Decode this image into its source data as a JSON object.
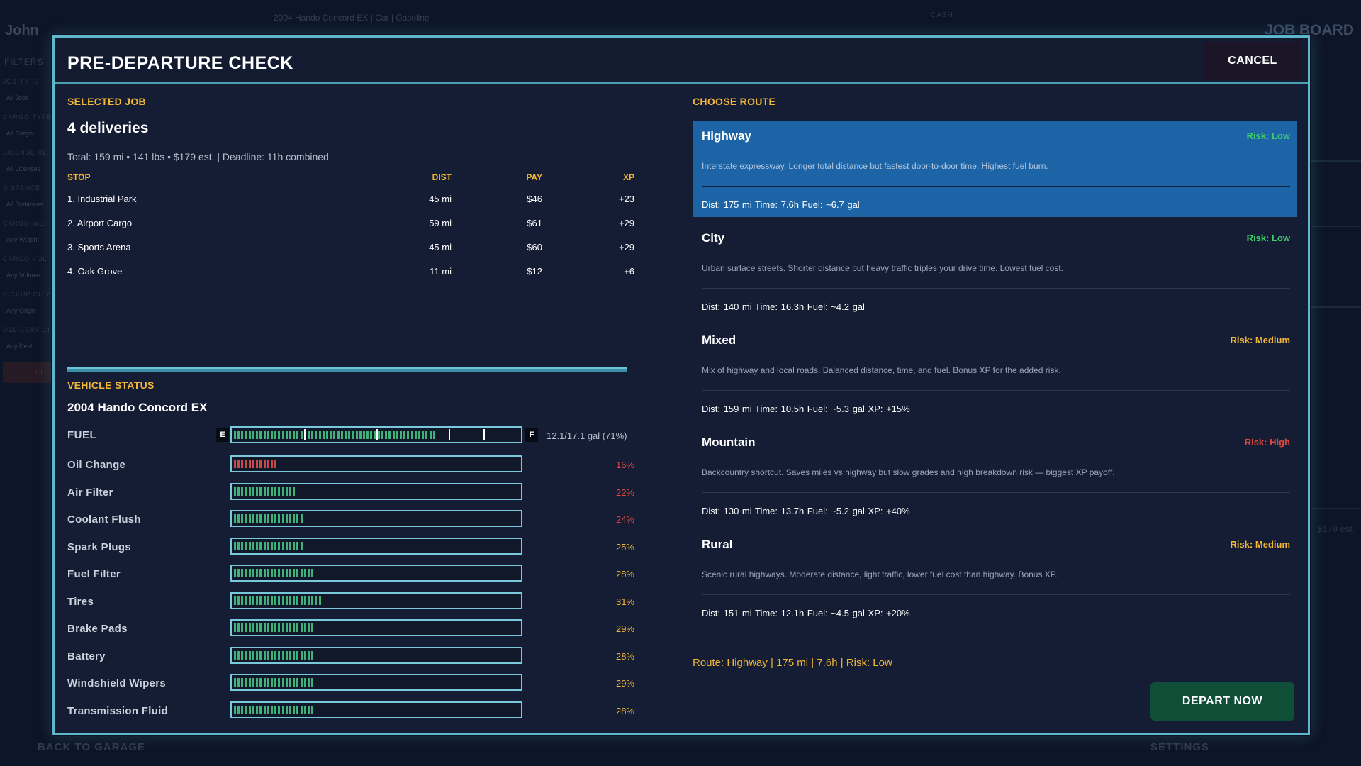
{
  "background": {
    "player": "John",
    "vehicle_info": "2004 Hando Concord EX  |  Car  |  Gasoline",
    "cash_label": "CASH",
    "job_board": "JOB BOARD",
    "filters_title": "FILTERS",
    "filters": [
      {
        "label": "JOB TYPE",
        "value": "All Jobs"
      },
      {
        "label": "CARGO TYPE",
        "value": "All Cargo"
      },
      {
        "label": "LICENSE RE",
        "value": "All Licenses"
      },
      {
        "label": "DISTANCE",
        "value": "All Distances"
      },
      {
        "label": "CARGO WEI",
        "value": "Any Weight"
      },
      {
        "label": "CARGO VOL",
        "value": "Any Volume"
      },
      {
        "label": "PICKUP CITY",
        "value": "Any Origin"
      },
      {
        "label": "DELIVERY CI",
        "value": "Any Dest."
      }
    ],
    "clear": "CLE",
    "back": "BACK TO GARAGE",
    "settings": "SETTINGS",
    "est": "$179 est."
  },
  "modal": {
    "title": "PRE-DEPARTURE CHECK",
    "cancel_label": "CANCEL"
  },
  "job": {
    "section": "SELECTED JOB",
    "title": "4 deliveries",
    "summary": "Total: 159 mi  •  141 lbs  •  $179 est.   |   Deadline: 11h combined",
    "headers": {
      "stop": "STOP",
      "dist": "DIST",
      "pay": "PAY",
      "xp": "XP"
    },
    "stops": [
      {
        "stop": "1. Industrial Park",
        "dist": "45 mi",
        "pay": "$46",
        "xp": "+23"
      },
      {
        "stop": "2. Airport Cargo",
        "dist": "59 mi",
        "pay": "$61",
        "xp": "+29"
      },
      {
        "stop": "3. Sports Arena",
        "dist": "45 mi",
        "pay": "$60",
        "xp": "+29"
      },
      {
        "stop": "4. Oak Grove",
        "dist": "11 mi",
        "pay": "$12",
        "xp": "+6"
      }
    ]
  },
  "vehicle": {
    "section": "VEHICLE STATUS",
    "name": "2004 Hando Concord EX",
    "fuel": {
      "label": "FUEL",
      "e": "E",
      "f": "F",
      "level": 0.71,
      "text": "12.1/17.1 gal  (71%)"
    },
    "maintenance": [
      {
        "label": "Oil Change",
        "pct": "16%",
        "level": 0.16,
        "color": "#e0473f"
      },
      {
        "label": "Air Filter",
        "pct": "22%",
        "level": 0.22,
        "color": "#e0473f"
      },
      {
        "label": "Coolant Flush",
        "pct": "24%",
        "level": 0.24,
        "color": "#e0473f"
      },
      {
        "label": "Spark Plugs",
        "pct": "25%",
        "level": 0.25,
        "color": "#f3b637"
      },
      {
        "label": "Fuel Filter",
        "pct": "28%",
        "level": 0.28,
        "color": "#f3b637"
      },
      {
        "label": "Tires",
        "pct": "31%",
        "level": 0.31,
        "color": "#f3b637"
      },
      {
        "label": "Brake Pads",
        "pct": "29%",
        "level": 0.29,
        "color": "#f3b637"
      },
      {
        "label": "Battery",
        "pct": "28%",
        "level": 0.28,
        "color": "#f3b637"
      },
      {
        "label": "Windshield Wipers",
        "pct": "29%",
        "level": 0.29,
        "color": "#f3b637"
      },
      {
        "label": "Transmission Fluid",
        "pct": "28%",
        "level": 0.28,
        "color": "#f3b637"
      }
    ]
  },
  "routes": {
    "section": "CHOOSE ROUTE",
    "items": [
      {
        "name": "Highway",
        "risk": "Risk: Low",
        "risk_color": "#3ccf6b",
        "desc": "Interstate expressway. Longer total distance but fastest door-to-door time. Highest fuel burn.",
        "stats": "Dist: 175 mi   Time: 7.6h   Fuel: ~6.7 gal",
        "selected": true
      },
      {
        "name": "City",
        "risk": "Risk: Low",
        "risk_color": "#3ccf6b",
        "desc": "Urban surface streets. Shorter distance but heavy traffic triples your drive time. Lowest fuel cost.",
        "stats": "Dist: 140 mi   Time: 16.3h   Fuel: ~4.2 gal",
        "selected": false
      },
      {
        "name": "Mixed",
        "risk": "Risk: Medium",
        "risk_color": "#f3b637",
        "desc": "Mix of highway and local roads. Balanced distance, time, and fuel. Bonus XP for the added risk.",
        "stats": "Dist: 159 mi   Time: 10.5h   Fuel: ~5.3 gal   XP: +15%",
        "selected": false
      },
      {
        "name": "Mountain",
        "risk": "Risk: High",
        "risk_color": "#e0473f",
        "desc": "Backcountry shortcut. Saves miles vs highway but slow grades and high breakdown risk — biggest XP payoff.",
        "stats": "Dist: 130 mi   Time: 13.7h   Fuel: ~5.2 gal   XP: +40%",
        "selected": false
      },
      {
        "name": "Rural",
        "risk": "Risk: Medium",
        "risk_color": "#f3b637",
        "desc": "Scenic rural highways. Moderate distance, light traffic, lower fuel cost than highway. Bonus XP.",
        "stats": "Dist: 151 mi   Time: 12.1h   Fuel: ~4.5 gal   XP: +20%",
        "selected": false
      }
    ],
    "summary": "Route: Highway  |  175 mi  |  7.6h  |  Risk: Low",
    "depart_label": "DEPART NOW"
  }
}
